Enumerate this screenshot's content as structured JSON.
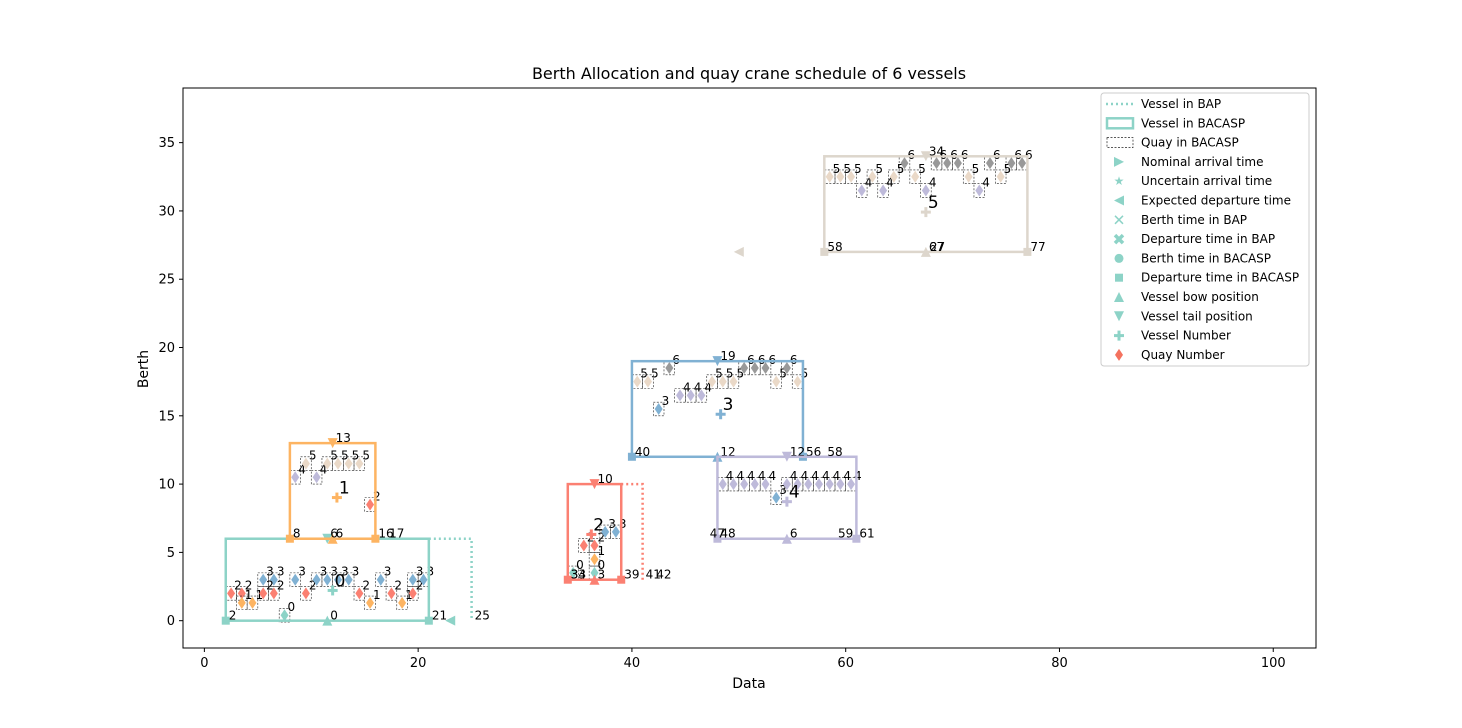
{
  "chart_data": {
    "type": "scatter",
    "title": "Berth Allocation and quay crane schedule  of 6 vessels",
    "xlabel": "Data",
    "ylabel": "Berth",
    "xlim": [
      -2,
      104
    ],
    "ylim": [
      -2,
      39
    ],
    "xticks": [
      0,
      20,
      40,
      60,
      80,
      100
    ],
    "yticks": [
      0,
      5,
      10,
      15,
      20,
      25,
      30,
      35
    ],
    "grid": false,
    "legend_position": "upper right",
    "legend": [
      {
        "label": "Vessel in BAP",
        "marker": "dotted-line"
      },
      {
        "label": "Vessel in BACASP",
        "marker": "solid-line"
      },
      {
        "label": "Quay in BACASP",
        "marker": "dashed-box"
      },
      {
        "label": "Nominal arrival time",
        "marker": "triangle-right"
      },
      {
        "label": "Uncertain arrival time",
        "marker": "star"
      },
      {
        "label": "Expected departure time",
        "marker": "triangle-left"
      },
      {
        "label": "Berth time in BAP",
        "marker": "x"
      },
      {
        "label": "Departure time in BAP",
        "marker": "x-filled"
      },
      {
        "label": "Berth time in BACASP",
        "marker": "circle"
      },
      {
        "label": "Departure time in BACASP",
        "marker": "square"
      },
      {
        "label": "Vessel bow position",
        "marker": "triangle-up"
      },
      {
        "label": "Vessel tail position",
        "marker": "triangle-down"
      },
      {
        "label": "Vessel Number",
        "marker": "plus"
      },
      {
        "label": "Quay Number",
        "marker": "diamond",
        "color": "#f4725e"
      }
    ],
    "quay_colors": {
      "0": "#8dd3c7",
      "1": "#fdb462",
      "2": "#fb8072",
      "3": "#80b1d3",
      "4": "#bebada",
      "5": "#ead9c8",
      "6": "#999999"
    },
    "vessels": [
      {
        "id": "0",
        "color": "#8dd3c7",
        "bacasp": {
          "x0": 2,
          "x1": 21,
          "y0": 0,
          "y1": 6
        },
        "bap_x1": 25,
        "label_pos": [
          12,
          2.8
        ],
        "arrival": 23,
        "arrival_label": "23",
        "markers": [
          [
            2,
            0,
            "2"
          ],
          [
            11.5,
            0,
            "0"
          ],
          [
            21,
            0,
            "21"
          ],
          [
            25,
            0,
            "25"
          ]
        ]
      },
      {
        "id": "1",
        "color": "#fdb462",
        "bacasp": {
          "x0": 8,
          "x1": 16,
          "y0": 6,
          "y1": 13
        },
        "bap_x1": null,
        "label_pos": [
          12.4,
          9.6
        ],
        "markers": [
          [
            8,
            6,
            "8"
          ],
          [
            11.5,
            6,
            "6"
          ],
          [
            12,
            6,
            "6"
          ],
          [
            16,
            6,
            "16"
          ],
          [
            17,
            6,
            "17"
          ],
          [
            12,
            13,
            "13"
          ]
        ]
      },
      {
        "id": "2",
        "color": "#fb8072",
        "bacasp": {
          "x0": 34,
          "x1": 39,
          "y0": 3,
          "y1": 10
        },
        "bap_x1": 41,
        "label_pos": [
          36.2,
          6.9
        ],
        "markers": [
          [
            34,
            3,
            "34"
          ],
          [
            34,
            3,
            "33"
          ],
          [
            36.5,
            3,
            "3"
          ],
          [
            39,
            3,
            "39"
          ],
          [
            41,
            3,
            "41"
          ],
          [
            42,
            3,
            "42"
          ],
          [
            36.5,
            10,
            "10"
          ]
        ]
      },
      {
        "id": "3",
        "color": "#80b1d3",
        "bacasp": {
          "x0": 40,
          "x1": 56,
          "y0": 12,
          "y1": 19
        },
        "bap_x1": null,
        "label_pos": [
          48.3,
          15.7
        ],
        "markers": [
          [
            40,
            12,
            "40"
          ],
          [
            48,
            12,
            "12"
          ],
          [
            54.5,
            12,
            "12"
          ],
          [
            56,
            12,
            "56"
          ],
          [
            48,
            19,
            "19"
          ]
        ]
      },
      {
        "id": "4",
        "color": "#bebada",
        "bacasp": {
          "x0": 48,
          "x1": 61,
          "y0": 6,
          "y1": 12
        },
        "bap_x1": null,
        "label_pos": [
          54.5,
          9.3
        ],
        "markers": [
          [
            47,
            6,
            "47"
          ],
          [
            48,
            6,
            "48"
          ],
          [
            54.5,
            6,
            "6"
          ],
          [
            59,
            6,
            "59"
          ],
          [
            61,
            6,
            "61"
          ],
          [
            58,
            12,
            "58"
          ]
        ]
      },
      {
        "id": "5",
        "color": "#ddd6cc",
        "bacasp": {
          "x0": 58,
          "x1": 77,
          "y0": 27,
          "y1": 34
        },
        "bap_x1": null,
        "label_pos": [
          67.5,
          30.5
        ],
        "arrival": 50,
        "arrival_label": "50",
        "markers": [
          [
            58,
            27,
            "58"
          ],
          [
            67.5,
            27,
            "67"
          ],
          [
            67.6,
            27,
            "27"
          ],
          [
            77,
            27,
            "77"
          ],
          [
            67.5,
            34,
            "34"
          ]
        ]
      }
    ],
    "quay_boxes": [
      {
        "x": 2.5,
        "y": 2,
        "q": "2"
      },
      {
        "x": 3.5,
        "y": 2,
        "q": "2"
      },
      {
        "x": 3.5,
        "y": 1.3,
        "q": "1"
      },
      {
        "x": 4.5,
        "y": 1.3,
        "q": "1"
      },
      {
        "x": 5.5,
        "y": 3,
        "q": "3"
      },
      {
        "x": 6.5,
        "y": 3,
        "q": "3"
      },
      {
        "x": 5.5,
        "y": 2,
        "q": "2"
      },
      {
        "x": 6.5,
        "y": 2,
        "q": "2"
      },
      {
        "x": 8.5,
        "y": 3,
        "q": "3"
      },
      {
        "x": 7.5,
        "y": 0.4,
        "q": "0"
      },
      {
        "x": 9.5,
        "y": 2,
        "q": "2"
      },
      {
        "x": 10.5,
        "y": 3,
        "q": "3"
      },
      {
        "x": 11.5,
        "y": 3,
        "q": "3"
      },
      {
        "x": 12.5,
        "y": 3,
        "q": "3"
      },
      {
        "x": 13.5,
        "y": 3,
        "q": "3"
      },
      {
        "x": 14.5,
        "y": 2,
        "q": "2"
      },
      {
        "x": 15.5,
        "y": 1.3,
        "q": "1"
      },
      {
        "x": 16.5,
        "y": 3,
        "q": "3"
      },
      {
        "x": 17.5,
        "y": 2,
        "q": "2"
      },
      {
        "x": 18.5,
        "y": 1.3,
        "q": "1"
      },
      {
        "x": 19.5,
        "y": 2,
        "q": "2"
      },
      {
        "x": 19.5,
        "y": 3,
        "q": "3"
      },
      {
        "x": 20.5,
        "y": 3,
        "q": "3"
      },
      {
        "x": 8.5,
        "y": 10.5,
        "q": "4"
      },
      {
        "x": 9.5,
        "y": 11.5,
        "q": "5"
      },
      {
        "x": 10.5,
        "y": 10.5,
        "q": "4"
      },
      {
        "x": 11.5,
        "y": 11.5,
        "q": "5"
      },
      {
        "x": 12.5,
        "y": 11.5,
        "q": "5"
      },
      {
        "x": 13.5,
        "y": 11.5,
        "q": "5"
      },
      {
        "x": 14.5,
        "y": 11.5,
        "q": "5"
      },
      {
        "x": 15.5,
        "y": 8.5,
        "q": "2"
      },
      {
        "x": 34.5,
        "y": 3.5,
        "q": "0"
      },
      {
        "x": 36.5,
        "y": 3.5,
        "q": "0"
      },
      {
        "x": 35.5,
        "y": 5.5,
        "q": "2"
      },
      {
        "x": 36.5,
        "y": 5.5,
        "q": "2"
      },
      {
        "x": 36.5,
        "y": 4.5,
        "q": "1"
      },
      {
        "x": 37.5,
        "y": 6.5,
        "q": "3"
      },
      {
        "x": 38.5,
        "y": 6.5,
        "q": "3"
      },
      {
        "x": 40.5,
        "y": 17.5,
        "q": "5"
      },
      {
        "x": 41.5,
        "y": 17.5,
        "q": "5"
      },
      {
        "x": 42.5,
        "y": 15.5,
        "q": "3"
      },
      {
        "x": 43.5,
        "y": 18.5,
        "q": "6"
      },
      {
        "x": 44.5,
        "y": 16.5,
        "q": "4"
      },
      {
        "x": 45.5,
        "y": 16.5,
        "q": "4"
      },
      {
        "x": 46.5,
        "y": 16.5,
        "q": "4"
      },
      {
        "x": 47.5,
        "y": 17.5,
        "q": "5"
      },
      {
        "x": 48.5,
        "y": 17.5,
        "q": "5"
      },
      {
        "x": 49.5,
        "y": 17.5,
        "q": "5"
      },
      {
        "x": 50.5,
        "y": 18.5,
        "q": "6"
      },
      {
        "x": 51.5,
        "y": 18.5,
        "q": "6"
      },
      {
        "x": 52.5,
        "y": 18.5,
        "q": "6"
      },
      {
        "x": 53.5,
        "y": 17.5,
        "q": "5"
      },
      {
        "x": 54.5,
        "y": 18.5,
        "q": "6"
      },
      {
        "x": 55.5,
        "y": 17.5,
        "q": "5"
      },
      {
        "x": 48.5,
        "y": 10,
        "q": "4"
      },
      {
        "x": 49.5,
        "y": 10,
        "q": "4"
      },
      {
        "x": 50.5,
        "y": 10,
        "q": "4"
      },
      {
        "x": 51.5,
        "y": 10,
        "q": "4"
      },
      {
        "x": 52.5,
        "y": 10,
        "q": "4"
      },
      {
        "x": 53.5,
        "y": 9,
        "q": "3"
      },
      {
        "x": 54.5,
        "y": 10,
        "q": "4"
      },
      {
        "x": 55.5,
        "y": 10,
        "q": "4"
      },
      {
        "x": 56.5,
        "y": 10,
        "q": "4"
      },
      {
        "x": 57.5,
        "y": 10,
        "q": "4"
      },
      {
        "x": 58.5,
        "y": 10,
        "q": "4"
      },
      {
        "x": 59.5,
        "y": 10,
        "q": "4"
      },
      {
        "x": 60.5,
        "y": 10,
        "q": "4"
      },
      {
        "x": 58.5,
        "y": 32.5,
        "q": "5"
      },
      {
        "x": 59.5,
        "y": 32.5,
        "q": "5"
      },
      {
        "x": 60.5,
        "y": 32.5,
        "q": "5"
      },
      {
        "x": 61.5,
        "y": 31.5,
        "q": "4"
      },
      {
        "x": 62.5,
        "y": 32.5,
        "q": "5"
      },
      {
        "x": 63.5,
        "y": 31.5,
        "q": "4"
      },
      {
        "x": 64.5,
        "y": 32.5,
        "q": "5"
      },
      {
        "x": 65.5,
        "y": 33.5,
        "q": "6"
      },
      {
        "x": 66.5,
        "y": 32.5,
        "q": "5"
      },
      {
        "x": 67.5,
        "y": 31.5,
        "q": "4"
      },
      {
        "x": 68.5,
        "y": 33.5,
        "q": "6"
      },
      {
        "x": 69.5,
        "y": 33.5,
        "q": "6"
      },
      {
        "x": 70.5,
        "y": 33.5,
        "q": "6"
      },
      {
        "x": 71.5,
        "y": 32.5,
        "q": "5"
      },
      {
        "x": 72.5,
        "y": 31.5,
        "q": "4"
      },
      {
        "x": 73.5,
        "y": 33.5,
        "q": "6"
      },
      {
        "x": 74.5,
        "y": 32.5,
        "q": "5"
      },
      {
        "x": 75.5,
        "y": 33.5,
        "q": "6"
      },
      {
        "x": 76.5,
        "y": 33.5,
        "q": "6"
      }
    ]
  }
}
